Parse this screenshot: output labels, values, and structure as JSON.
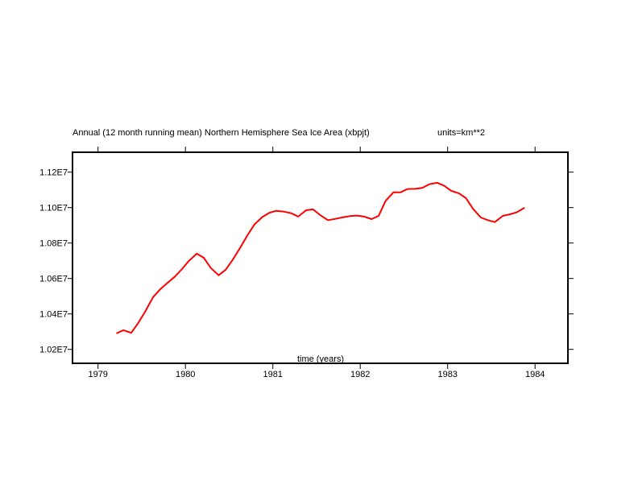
{
  "chart_data": {
    "type": "line",
    "title": "Annual (12 month running mean) Northern Hemisphere Sea Ice Area (xbpjt)",
    "units_label": "units=km**2",
    "xlabel": "time (years)",
    "ylabel": "",
    "xlim": [
      1978.7,
      1984.37
    ],
    "ylim": [
      10125000,
      11320000
    ],
    "x_ticks": [
      1979,
      1980,
      1981,
      1982,
      1983,
      1984
    ],
    "x_tick_labels": [
      "1979",
      "1980",
      "1981",
      "1982",
      "1983",
      "1984"
    ],
    "y_ticks": [
      10200000,
      10400000,
      10600000,
      10800000,
      11000000,
      11200000
    ],
    "y_tick_labels": [
      "1.02E7",
      "1.04E7",
      "1.06E7",
      "1.08E7",
      "1.10E7",
      "1.12E7"
    ],
    "grid": false,
    "series": [
      {
        "name": "Northern Hemisphere Sea Ice Area",
        "color": "#ff0000",
        "x": [
          1979.21,
          1979.29,
          1979.38,
          1979.46,
          1979.54,
          1979.63,
          1979.71,
          1979.79,
          1979.88,
          1979.96,
          1980.04,
          1980.13,
          1980.21,
          1980.29,
          1980.38,
          1980.46,
          1980.54,
          1980.63,
          1980.71,
          1980.79,
          1980.88,
          1980.96,
          1981.04,
          1981.13,
          1981.21,
          1981.29,
          1981.38,
          1981.46,
          1981.54,
          1981.63,
          1981.71,
          1981.79,
          1981.88,
          1981.96,
          1982.04,
          1982.13,
          1982.21,
          1982.29,
          1982.38,
          1982.46,
          1982.54,
          1982.63,
          1982.71,
          1982.79,
          1982.88,
          1982.96,
          1983.04,
          1983.13,
          1983.21,
          1983.29,
          1983.38,
          1983.46,
          1983.54,
          1983.63,
          1983.71,
          1983.79,
          1983.88
        ],
        "values": [
          10290000,
          10308000,
          10293000,
          10349000,
          10414000,
          10495000,
          10538000,
          10573000,
          10611000,
          10653000,
          10699000,
          10740000,
          10717000,
          10659000,
          10618000,
          10649000,
          10705000,
          10777000,
          10844000,
          10905000,
          10947000,
          10971000,
          10982000,
          10977000,
          10968000,
          10949000,
          10985000,
          10990000,
          10958000,
          10929000,
          10936000,
          10944000,
          10952000,
          10955000,
          10950000,
          10935000,
          10953000,
          11038000,
          11086000,
          11086000,
          11105000,
          11106000,
          11111000,
          11132000,
          11140000,
          11123000,
          11095000,
          11080000,
          11053000,
          10993000,
          10944000,
          10929000,
          10918000,
          10953000,
          10962000,
          10973000,
          10999000
        ]
      }
    ]
  }
}
